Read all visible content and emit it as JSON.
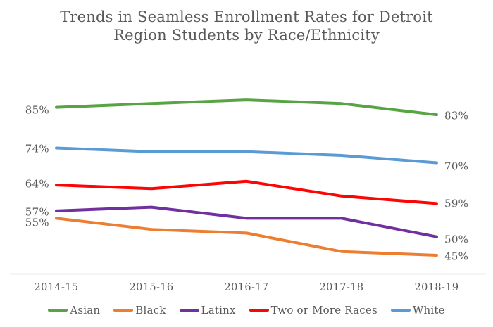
{
  "title_lines": [
    "Trends in Seamless Enrollment Rates for Detroit",
    "Region Students by Race/Ethnicity"
  ],
  "colors": {
    "text": "#595959",
    "axis_line": "#D9D9D9",
    "background": "#FFFFFF"
  },
  "chart_data": {
    "type": "line",
    "title": "Trends in Seamless Enrollment Rates for Detroit Region Students by Race/Ethnicity",
    "categories": [
      "2014-15",
      "2015-16",
      "2016-17",
      "2017-18",
      "2018-19"
    ],
    "series": [
      {
        "name": "Asian",
        "color": "#58A445",
        "values": [
          85,
          86,
          87,
          86,
          83
        ]
      },
      {
        "name": "Black",
        "color": "#ED7D31",
        "values": [
          55,
          52,
          51,
          46,
          45
        ]
      },
      {
        "name": "Latinx",
        "color": "#7030A0",
        "values": [
          57,
          58,
          55,
          55,
          50
        ]
      },
      {
        "name": "Two or More Races",
        "color": "#FB0505",
        "values": [
          64,
          63,
          65,
          61,
          59
        ]
      },
      {
        "name": "White",
        "color": "#5B9BD5",
        "values": [
          74,
          73,
          73,
          72,
          70
        ]
      }
    ],
    "value_suffix": "%",
    "shown_data_labels": "first and last value of each series",
    "ylim": [
      45,
      87
    ],
    "grid": false,
    "y_axis_shown": false,
    "legend_position": "bottom"
  }
}
